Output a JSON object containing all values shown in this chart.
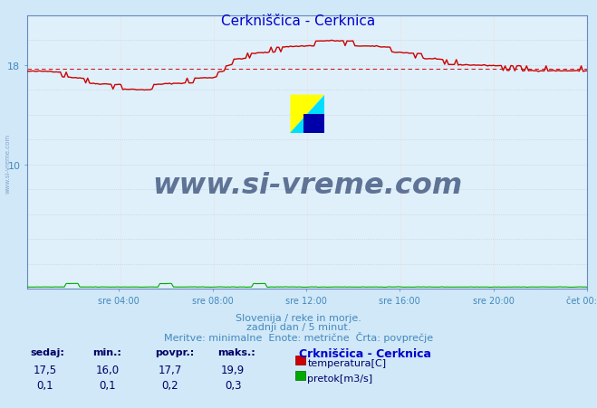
{
  "title": "Cerkniščica - Cerknica",
  "title_color": "#0000cc",
  "bg_color": "#d0e8f8",
  "plot_bg_color": "#dff0fa",
  "grid_color_gray": "#bbccdd",
  "grid_color_red": "#ffcccc",
  "y_min": 0,
  "y_max": 22,
  "y_tick_values": [
    10,
    18
  ],
  "y_tick_labels": [
    "10",
    "18"
  ],
  "x_labels": [
    "sre 04:00",
    "sre 08:00",
    "sre 12:00",
    "sre 16:00",
    "sre 20:00",
    "čet 00:00"
  ],
  "avg_temp": 17.7,
  "temp_color": "#cc0000",
  "flow_color": "#00aa00",
  "watermark_text": "www.si-vreme.com",
  "watermark_color": "#1a3060",
  "footer_color": "#4488bb",
  "footer_line1": "Slovenija / reke in morje.",
  "footer_line2": "zadnji dan / 5 minut.",
  "footer_line3": "Meritve: minimalne  Enote: metrične  Črta: povprečje",
  "legend_title": "Crkniščica - Cerknica",
  "legend_title_display": "Crkniščica - Cerknica",
  "stat_headers": [
    "sedaj:",
    "min.:",
    "povpr.:",
    "maks.:"
  ],
  "temp_stats": [
    "17,5",
    "16,0",
    "17,7",
    "19,9"
  ],
  "flow_stats": [
    "0,1",
    "0,1",
    "0,2",
    "0,3"
  ],
  "stat_color": "#000066",
  "legend_color": "#0000cc",
  "n_points": 288,
  "figwidth": 6.59,
  "figheight": 4.52,
  "dpi": 100
}
